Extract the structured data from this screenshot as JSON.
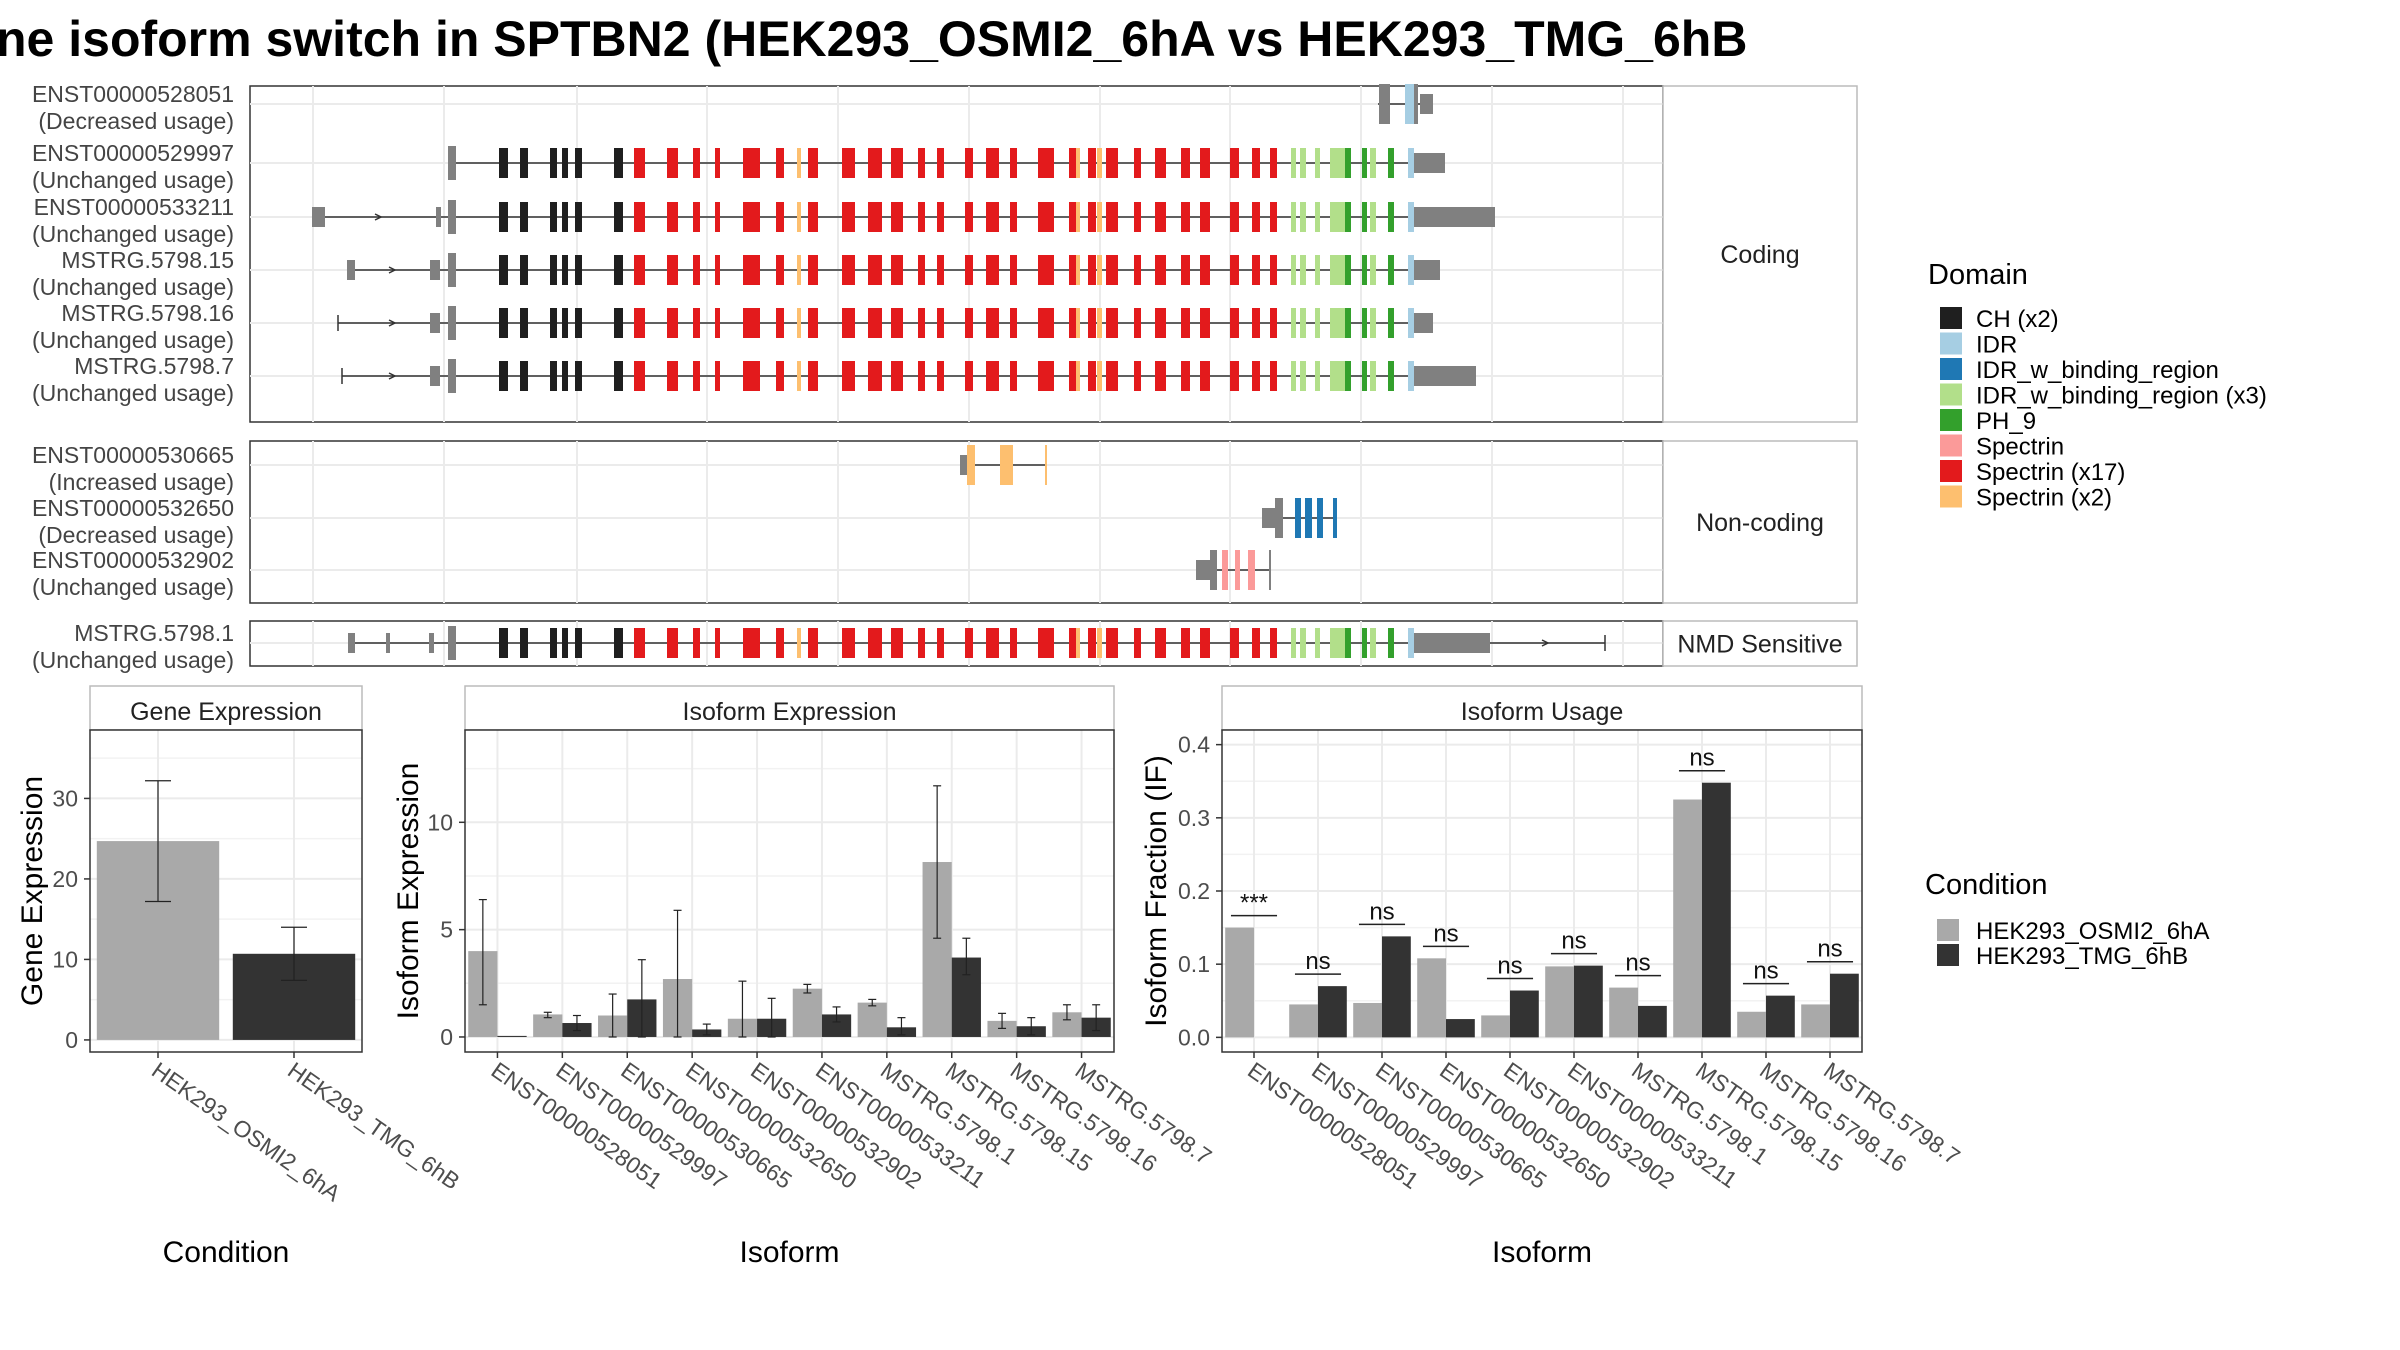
{
  "title": "ne isoform switch in SPTBN2 (HEK293_OSMI2_6hA vs HEK293_TMG_6hB",
  "colors": {
    "ch": "#1f1f1f",
    "idr": "#a6cee3",
    "idr_binding": "#1f78b4",
    "idr_binding_x3": "#b2df8a",
    "ph9": "#33a02c",
    "spectrin": "#fb9a99",
    "spectrin_x17": "#e31a1c",
    "spectrin_x2": "#fdbf6f",
    "utr": "#808080",
    "cond_a": "#a9a9a9",
    "cond_b": "#333333"
  },
  "domain_legend": {
    "title": "Domain",
    "items": [
      {
        "label": "CH (x2)",
        "color": "#1f1f1f"
      },
      {
        "label": "IDR",
        "color": "#a6cee3"
      },
      {
        "label": "IDR_w_binding_region",
        "color": "#1f78b4"
      },
      {
        "label": "IDR_w_binding_region (x3)",
        "color": "#b2df8a"
      },
      {
        "label": "PH_9",
        "color": "#33a02c"
      },
      {
        "label": "Spectrin",
        "color": "#fb9a99"
      },
      {
        "label": "Spectrin (x17)",
        "color": "#e31a1c"
      },
      {
        "label": "Spectrin (x2)",
        "color": "#fdbf6f"
      }
    ]
  },
  "condition_legend": {
    "title": "Condition",
    "items": [
      {
        "label": "HEK293_OSMI2_6hA",
        "color": "#a9a9a9"
      },
      {
        "label": "HEK293_TMG_6hB",
        "color": "#333333"
      }
    ]
  },
  "structure": {
    "groups": [
      {
        "label": "Coding",
        "isoforms": [
          {
            "id": "ENST00000528051",
            "usage": "(Decreased usage)",
            "kind": "short_c"
          },
          {
            "id": "ENST00000529997",
            "usage": "(Unchanged usage)",
            "kind": "full_a"
          },
          {
            "id": "ENST00000533211",
            "usage": "(Unchanged usage)",
            "kind": "full_b"
          },
          {
            "id": "MSTRG.5798.15",
            "usage": "(Unchanged usage)",
            "kind": "full_c"
          },
          {
            "id": "MSTRG.5798.16",
            "usage": "(Unchanged usage)",
            "kind": "full_d"
          },
          {
            "id": "MSTRG.5798.7",
            "usage": "(Unchanged usage)",
            "kind": "full_e"
          }
        ]
      },
      {
        "label": "Non-coding",
        "isoforms": [
          {
            "id": "ENST00000530665",
            "usage": "(Increased usage)",
            "kind": "nc_a"
          },
          {
            "id": "ENST00000532650",
            "usage": "(Decreased usage)",
            "kind": "nc_b"
          },
          {
            "id": "ENST00000532902",
            "usage": "(Unchanged usage)",
            "kind": "nc_c"
          }
        ]
      },
      {
        "label": "NMD Sensitive",
        "isoforms": [
          {
            "id": "MSTRG.5798.1",
            "usage": "(Unchanged usage)",
            "kind": "nmd"
          }
        ]
      }
    ]
  },
  "chart_data": [
    {
      "type": "bar",
      "title": "Gene Expression",
      "xlabel": "Condition",
      "ylabel": "Gene Expression",
      "categories": [
        "HEK293_OSMI2_6hA",
        "HEK293_TMG_6hB"
      ],
      "values": [
        24.7,
        10.7
      ],
      "errors": [
        [
          17.2,
          32.2
        ],
        [
          7.4,
          14.0
        ]
      ],
      "ylim": [
        -1.5,
        38.5
      ],
      "yticks": [
        0,
        10,
        20,
        30
      ]
    },
    {
      "type": "bar",
      "title": "Isoform Expression",
      "xlabel": "Isoform",
      "ylabel": "Isoform Expression",
      "categories": [
        "ENST00000528051",
        "ENST00000529997",
        "ENST00000530665",
        "ENST00000532650",
        "ENST00000532902",
        "ENST00000533211",
        "MSTRG.5798.1",
        "MSTRG.5798.15",
        "MSTRG.5798.16",
        "MSTRG.5798.7"
      ],
      "series": [
        {
          "name": "HEK293_OSMI2_6hA",
          "values": [
            4.0,
            1.05,
            1.0,
            2.7,
            0.85,
            2.25,
            1.6,
            8.15,
            0.75,
            1.15
          ],
          "errors": [
            [
              1.5,
              6.4
            ],
            [
              0.9,
              1.15
            ],
            [
              0.0,
              2.0
            ],
            [
              0.0,
              5.9
            ],
            [
              0.0,
              2.6
            ],
            [
              2.05,
              2.45
            ],
            [
              1.45,
              1.75
            ],
            [
              4.6,
              11.7
            ],
            [
              0.4,
              1.1
            ],
            [
              0.8,
              1.5
            ]
          ]
        },
        {
          "name": "HEK293_TMG_6hB",
          "values": [
            0.05,
            0.65,
            1.75,
            0.35,
            0.85,
            1.05,
            0.45,
            3.7,
            0.5,
            0.9
          ],
          "errors": [
            null,
            [
              0.3,
              1.0
            ],
            [
              0.0,
              3.6
            ],
            [
              0.1,
              0.6
            ],
            [
              0.0,
              1.8
            ],
            [
              0.7,
              1.4
            ],
            [
              0.1,
              0.9
            ],
            [
              2.9,
              4.6
            ],
            [
              0.1,
              0.9
            ],
            [
              0.3,
              1.5
            ]
          ]
        }
      ],
      "ylim": [
        -0.7,
        14.3
      ],
      "yticks": [
        0,
        5,
        10
      ]
    },
    {
      "type": "bar",
      "title": "Isoform Usage",
      "xlabel": "Isoform",
      "ylabel": "Isoform Fraction (IF)",
      "categories": [
        "ENST00000528051",
        "ENST00000529997",
        "ENST00000530665",
        "ENST00000532650",
        "ENST00000532902",
        "ENST00000533211",
        "MSTRG.5798.1",
        "MSTRG.5798.15",
        "MSTRG.5798.16",
        "MSTRG.5798.7"
      ],
      "series": [
        {
          "name": "HEK293_OSMI2_6hA",
          "values": [
            0.15,
            0.045,
            0.047,
            0.108,
            0.03,
            0.097,
            0.068,
            0.325,
            0.035,
            0.045
          ]
        },
        {
          "name": "HEK293_TMG_6hB",
          "values": [
            0.0,
            0.07,
            0.138,
            0.025,
            0.064,
            0.098,
            0.043,
            0.348,
            0.057,
            0.087
          ]
        }
      ],
      "significance": [
        "***",
        "ns",
        "ns",
        "ns",
        "ns",
        "ns",
        "ns",
        "ns",
        "ns",
        "ns"
      ],
      "ylim": [
        -0.02,
        0.42
      ],
      "yticks": [
        0.0,
        0.1,
        0.2,
        0.3,
        0.4
      ],
      "ytick_labels": [
        "0.0",
        "0.1",
        "0.2",
        "0.3",
        "0.4"
      ]
    }
  ]
}
